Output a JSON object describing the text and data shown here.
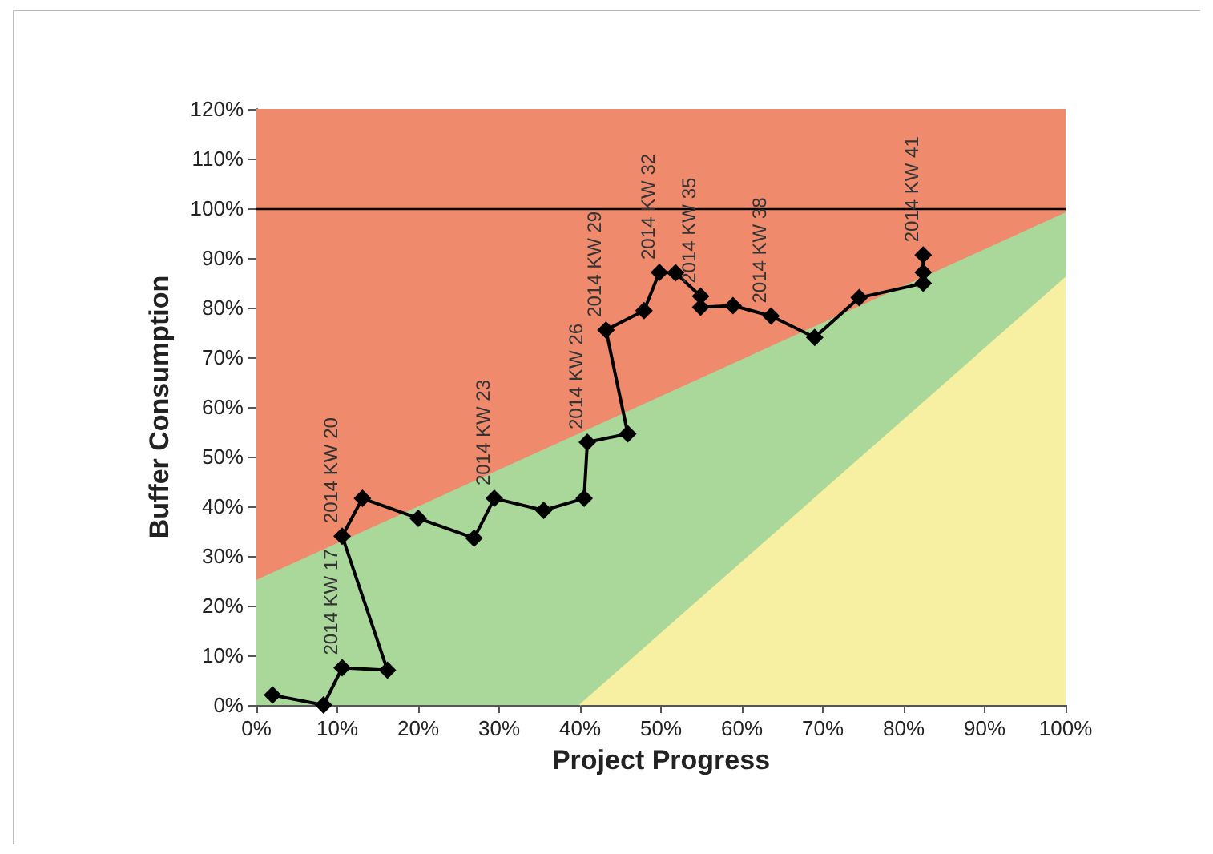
{
  "chart_data": {
    "type": "line",
    "xlabel": "Project Progress",
    "ylabel": "Buffer Consumption",
    "series": [
      {
        "type": "area",
        "color": "#a9d89a",
        "x": [
          0,
          100
        ],
        "values": [
          25,
          99
        ]
      },
      {
        "type": "area",
        "color": "#f7f0a2",
        "x": [
          40,
          100
        ],
        "values": [
          0,
          86
        ]
      },
      {
        "type": "line",
        "color": "#000000",
        "marker": "diamond",
        "x": [
          2,
          8.3,
          10.6,
          16.2,
          10.6,
          13.1,
          20,
          26.9,
          29.4,
          35.5,
          40.5,
          40.9,
          45.9,
          43.2,
          47.9,
          49.8,
          51.8,
          54.9,
          54.9,
          58.9,
          63.6,
          69,
          74.5,
          82.4,
          82.4,
          82.4
        ],
        "values": [
          2,
          0,
          7.5,
          7,
          34,
          41.6,
          37.6,
          33.6,
          41.6,
          39.2,
          41.6,
          52.9,
          54.6,
          75.5,
          79.4,
          87.1,
          87,
          82.3,
          80.1,
          80.4,
          78.3,
          74,
          82,
          84.9,
          87.1,
          90.6
        ]
      }
    ],
    "ref_lines": [
      {
        "axis": "y",
        "value": 100,
        "color": "#000000"
      }
    ],
    "bands": [
      {
        "axis": "x",
        "from": 0,
        "to": 100,
        "color": "#f08a6c"
      }
    ],
    "annotations": [
      {
        "text": "2014 KW 17",
        "x": 10.6,
        "y": 7.5
      },
      {
        "text": "2014 KW 20",
        "x": 10.6,
        "y": 34
      },
      {
        "text": "2014 KW 23",
        "x": 29.4,
        "y": 41.6
      },
      {
        "text": "2014 KW 26",
        "x": 40.9,
        "y": 52.9
      },
      {
        "text": "2014 KW 29",
        "x": 43.2,
        "y": 75.5
      },
      {
        "text": "2014 KW 32",
        "x": 49.8,
        "y": 87.1
      },
      {
        "text": "2014 KW 35",
        "x": 54.9,
        "y": 82.3
      },
      {
        "text": "2014 KW 38",
        "x": 63.6,
        "y": 78.3
      },
      {
        "text": "2014 KW 41",
        "x": 82.4,
        "y": 90.6
      }
    ],
    "xlim": [
      0,
      100
    ],
    "xticks": [
      {
        "value": 0,
        "label": "0%"
      },
      {
        "value": 10,
        "label": "10%"
      },
      {
        "value": 20,
        "label": "20%"
      },
      {
        "value": 30,
        "label": "30%"
      },
      {
        "value": 40,
        "label": "40%"
      },
      {
        "value": 50,
        "label": "50%"
      },
      {
        "value": 60,
        "label": "60%"
      },
      {
        "value": 70,
        "label": "70%"
      },
      {
        "value": 80,
        "label": "80%"
      },
      {
        "value": 90,
        "label": "90%"
      },
      {
        "value": 100,
        "label": "100%"
      }
    ],
    "ylim": [
      0,
      120
    ],
    "yticks": [
      {
        "value": 0,
        "label": "0%"
      },
      {
        "value": 10,
        "label": "10%"
      },
      {
        "value": 20,
        "label": "20%"
      },
      {
        "value": 30,
        "label": "30%"
      },
      {
        "value": 40,
        "label": "40%"
      },
      {
        "value": 50,
        "label": "50%"
      },
      {
        "value": 60,
        "label": "60%"
      },
      {
        "value": 70,
        "label": "70%"
      },
      {
        "value": 80,
        "label": "80%"
      },
      {
        "value": 90,
        "label": "90%"
      },
      {
        "value": 100,
        "label": "100%"
      },
      {
        "value": 110,
        "label": "110%"
      },
      {
        "value": 120,
        "label": "120%"
      }
    ],
    "grid": false
  }
}
